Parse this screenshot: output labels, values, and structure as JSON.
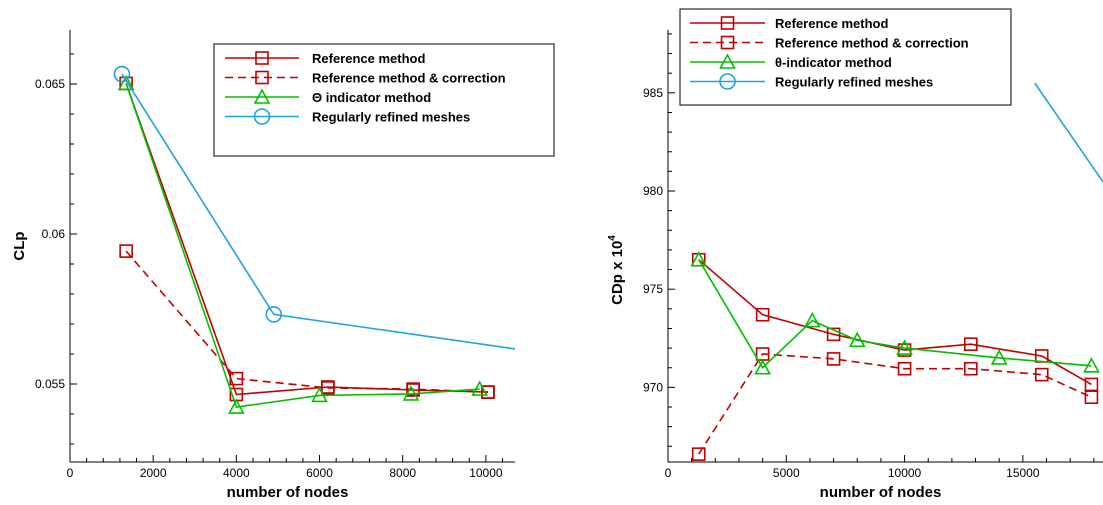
{
  "chart_data": [
    {
      "type": "line",
      "xlabel": "number of nodes",
      "ylabel": "CLp",
      "xlim": [
        0,
        10700
      ],
      "ylim": [
        0.0524,
        0.0668
      ],
      "x_ticks": [
        0,
        2000,
        4000,
        6000,
        8000,
        10000
      ],
      "y_ticks": [
        0.055,
        0.06,
        0.065
      ],
      "x_tick_labels": [
        "0",
        "2000",
        "4000",
        "6000",
        "8000",
        "10000"
      ],
      "y_tick_labels": [
        "0.055",
        "0.06",
        "0.065"
      ],
      "grid": false,
      "legend_position": "top-right",
      "series": [
        {
          "name": "Reference method",
          "color": "#c00000",
          "dash": "solid",
          "marker": "square",
          "x": [
            1350,
            4000,
            6200,
            8250,
            10050
          ],
          "y": [
            0.06502,
            0.05465,
            0.0549,
            0.0548,
            0.05473
          ]
        },
        {
          "name": "Reference method & correction",
          "color": "#c00000",
          "dash": "dashed",
          "marker": "square",
          "x": [
            1350,
            4000,
            6200,
            8250,
            10050
          ],
          "y": [
            0.05943,
            0.05518,
            0.05487,
            0.05483,
            0.05473
          ]
        },
        {
          "name": "Θ indicator method",
          "color": "#00c000",
          "dash": "solid",
          "marker": "triangle",
          "x": [
            1350,
            4000,
            6000,
            8200,
            9850
          ],
          "y": [
            0.06502,
            0.05423,
            0.05462,
            0.05467,
            0.05483
          ]
        },
        {
          "name": "Regularly refined meshes",
          "color": "#1fa2e0",
          "dash": "solid",
          "marker": "circle",
          "x": [
            1250,
            4900,
            10700
          ],
          "y": [
            0.06533,
            0.05732,
            0.05617
          ],
          "markers_at": [
            0,
            1
          ]
        }
      ]
    },
    {
      "type": "line",
      "xlabel": "number of nodes",
      "ylabel_main": "CDp x 10",
      "ylabel_exp": "4",
      "xlim": [
        0,
        18600
      ],
      "ylim": [
        966.2,
        988.2
      ],
      "x_ticks": [
        0,
        5000,
        10000,
        15000
      ],
      "y_ticks": [
        970,
        975,
        980,
        985
      ],
      "x_tick_labels": [
        "0",
        "5000",
        "10000",
        "15000"
      ],
      "y_tick_labels": [
        "970",
        "975",
        "980",
        "985"
      ],
      "grid": false,
      "legend_position": "top",
      "series": [
        {
          "name": "Reference method",
          "color": "#c00000",
          "dash": "solid",
          "marker": "square",
          "x": [
            1300,
            4000,
            7000,
            10000,
            12800,
            15800,
            17900
          ],
          "y": [
            976.5,
            973.7,
            972.7,
            971.9,
            972.2,
            971.6,
            970.15
          ]
        },
        {
          "name": "Reference method & correction",
          "color": "#c00000",
          "dash": "dashed",
          "marker": "square",
          "x": [
            1300,
            4000,
            7000,
            10000,
            12800,
            15800,
            17900
          ],
          "y": [
            966.6,
            971.7,
            971.45,
            970.95,
            970.95,
            970.65,
            969.5
          ]
        },
        {
          "name": "θ-indicator method",
          "color": "#00c000",
          "dash": "solid",
          "marker": "triangle",
          "x": [
            1300,
            4000,
            6100,
            8000,
            10000,
            14000,
            17900
          ],
          "y": [
            976.5,
            971.0,
            973.4,
            972.4,
            972.0,
            971.5,
            971.1
          ]
        },
        {
          "name": "Regularly refined meshes",
          "color": "#1fa2e0",
          "dash": "solid",
          "marker": "circle",
          "x": [
            15500,
            18600
          ],
          "y": [
            985.5,
            980.1
          ],
          "markers_at": []
        }
      ]
    }
  ]
}
